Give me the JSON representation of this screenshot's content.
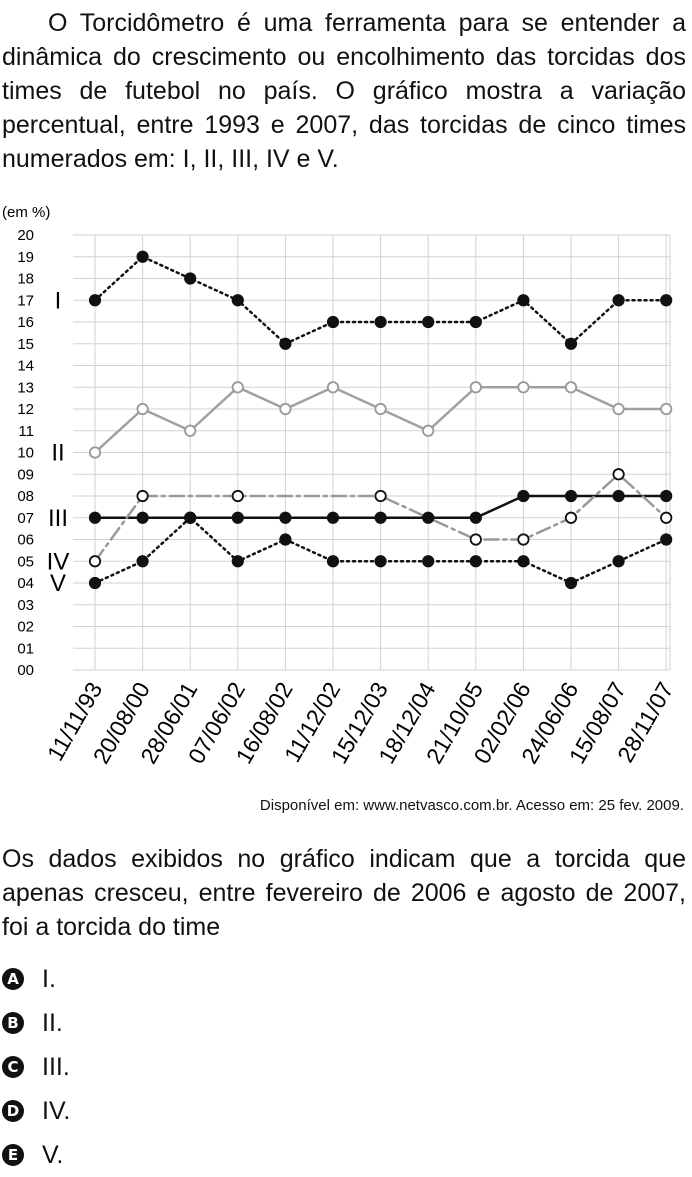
{
  "intro": "O Torcidômetro é uma ferramenta para se entender a dinâmica do crescimento ou encolhimento das torcidas dos times de futebol no país. O gráfico mostra a variação percentual, entre 1993 e 2007, das torcidas de cinco times numerados em: I, II, III, IV e V.",
  "chart_data": {
    "type": "line",
    "ylabel": "(em %)",
    "ylim": [
      0,
      20
    ],
    "yticks": [
      "00",
      "01",
      "02",
      "03",
      "04",
      "05",
      "06",
      "07",
      "08",
      "09",
      "10",
      "11",
      "12",
      "13",
      "14",
      "15",
      "16",
      "17",
      "18",
      "19",
      "20"
    ],
    "x": [
      "11/11/93",
      "20/08/00",
      "28/06/01",
      "07/06/02",
      "16/08/02",
      "11/12/02",
      "15/12/03",
      "18/12/04",
      "21/10/05",
      "02/02/06",
      "24/06/06",
      "15/08/07",
      "28/11/07"
    ],
    "grid": true,
    "series": [
      {
        "name": "I",
        "values": [
          17,
          19,
          18,
          17,
          15,
          16,
          16,
          16,
          16,
          17,
          15,
          17,
          17
        ]
      },
      {
        "name": "II",
        "values": [
          10,
          12,
          11,
          13,
          12,
          13,
          12,
          11,
          13,
          13,
          13,
          12,
          12
        ]
      },
      {
        "name": "III",
        "values": [
          7,
          7,
          7,
          7,
          7,
          7,
          7,
          7,
          7,
          8,
          8,
          8,
          8
        ]
      },
      {
        "name": "IV",
        "values": [
          5,
          8,
          null,
          8,
          null,
          null,
          8,
          null,
          6,
          6,
          7,
          9,
          7
        ]
      },
      {
        "name": "V",
        "values": [
          4,
          5,
          7,
          5,
          6,
          5,
          5,
          5,
          5,
          5,
          4,
          5,
          6
        ]
      }
    ],
    "colors": {
      "I": "#111111",
      "II": "#999999",
      "III": "#111111",
      "IV": "#888888",
      "V": "#111111"
    }
  },
  "source": "Disponível em: www.netvasco.com.br. Acesso em: 25 fev. 2009.",
  "question": "Os dados exibidos no gráfico indicam que a torcida que apenas cresceu, entre fevereiro de 2006 e agosto de 2007, foi a torcida do time",
  "options": [
    {
      "letter": "A",
      "text": "I."
    },
    {
      "letter": "B",
      "text": "II."
    },
    {
      "letter": "C",
      "text": "III."
    },
    {
      "letter": "D",
      "text": "IV."
    },
    {
      "letter": "E",
      "text": "V."
    }
  ]
}
